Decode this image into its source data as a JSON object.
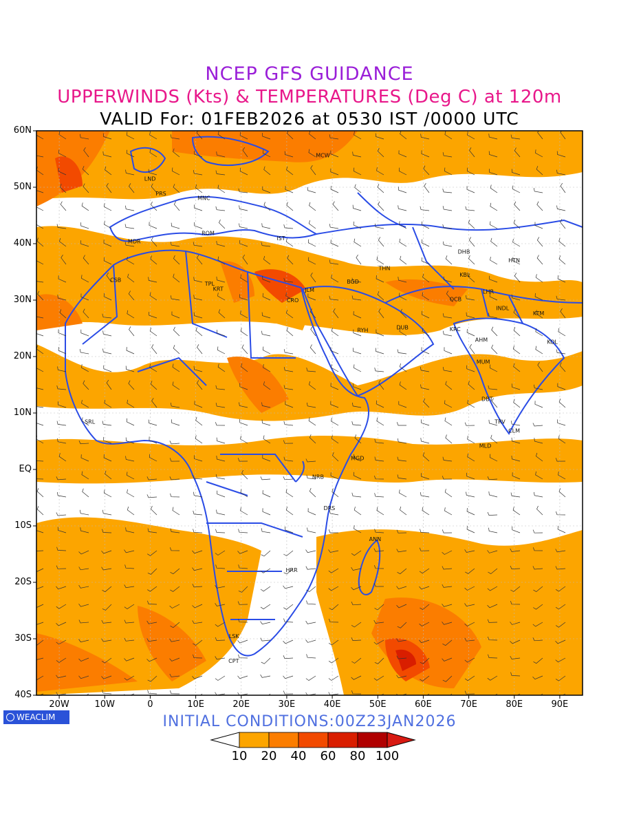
{
  "header": {
    "title": "NCEP GFS GUIDANCE",
    "subtitle": "UPPERWINDS (Kts) & TEMPERATURES (Deg C) at 120m",
    "valid": "VALID For: 01FEB2026 at 0530 IST /0000 UTC"
  },
  "footer": {
    "initial_conditions": "INITIAL  CONDITIONS:00Z23JAN2026",
    "logo": "WEACLIM"
  },
  "map": {
    "region": "Africa / Middle East / South Asia",
    "lat_range": [
      -40,
      60
    ],
    "lon_range": [
      -25,
      95
    ],
    "lat_labels": [
      "60N",
      "50N",
      "40N",
      "30N",
      "20N",
      "10N",
      "EQ",
      "10S",
      "20S",
      "30S",
      "40S"
    ],
    "lon_labels": [
      "20W",
      "10W",
      "0",
      "10E",
      "20E",
      "30E",
      "40E",
      "50E",
      "60E",
      "70E",
      "80E",
      "90E"
    ],
    "stations": [
      {
        "name": "MCW",
        "lat": 55.7,
        "lon": 37.6
      },
      {
        "name": "LND",
        "lat": 51.5,
        "lon": -0.1
      },
      {
        "name": "PRS",
        "lat": 48.9,
        "lon": 2.4
      },
      {
        "name": "MNC",
        "lat": 48.1,
        "lon": 11.6
      },
      {
        "name": "ROM",
        "lat": 41.9,
        "lon": 12.5
      },
      {
        "name": "MDR",
        "lat": 40.4,
        "lon": -3.7
      },
      {
        "name": "IST",
        "lat": 41.0,
        "lon": 29.0
      },
      {
        "name": "THN",
        "lat": 35.7,
        "lon": 51.4
      },
      {
        "name": "BGD",
        "lat": 33.3,
        "lon": 44.4
      },
      {
        "name": "TPL",
        "lat": 32.9,
        "lon": 13.2
      },
      {
        "name": "KRT",
        "lat": 32.0,
        "lon": 15.0
      },
      {
        "name": "CSB",
        "lat": 33.6,
        "lon": -7.6
      },
      {
        "name": "JLM",
        "lat": 31.8,
        "lon": 35.2
      },
      {
        "name": "CRO",
        "lat": 30.0,
        "lon": 31.2
      },
      {
        "name": "RYH",
        "lat": 24.7,
        "lon": 46.7
      },
      {
        "name": "DUB",
        "lat": 25.2,
        "lon": 55.3
      },
      {
        "name": "DHB",
        "lat": 38.6,
        "lon": 68.8
      },
      {
        "name": "KBL",
        "lat": 34.5,
        "lon": 69.2
      },
      {
        "name": "HTN",
        "lat": 37.1,
        "lon": 79.9
      },
      {
        "name": "LHR",
        "lat": 31.5,
        "lon": 74.3
      },
      {
        "name": "QCB",
        "lat": 30.2,
        "lon": 67.0
      },
      {
        "name": "INDL",
        "lat": 28.6,
        "lon": 77.2
      },
      {
        "name": "KTM",
        "lat": 27.7,
        "lon": 85.3
      },
      {
        "name": "KRC",
        "lat": 24.9,
        "lon": 67.0
      },
      {
        "name": "AHM",
        "lat": 23.0,
        "lon": 72.6
      },
      {
        "name": "KOL",
        "lat": 22.6,
        "lon": 88.4
      },
      {
        "name": "MUM",
        "lat": 19.1,
        "lon": 72.9
      },
      {
        "name": "DBT",
        "lat": 12.5,
        "lon": 74.0
      },
      {
        "name": "TRV",
        "lat": 8.5,
        "lon": 76.9
      },
      {
        "name": "CLM",
        "lat": 6.9,
        "lon": 79.9
      },
      {
        "name": "MLD",
        "lat": 4.2,
        "lon": 73.5
      },
      {
        "name": "SRL",
        "lat": 8.5,
        "lon": -13.2
      },
      {
        "name": "MGD",
        "lat": 2.0,
        "lon": 45.3
      },
      {
        "name": "NRB",
        "lat": -1.3,
        "lon": 36.8
      },
      {
        "name": "DRS",
        "lat": -6.8,
        "lon": 39.3
      },
      {
        "name": "ANN",
        "lat": -12.3,
        "lon": 49.3
      },
      {
        "name": "HRR",
        "lat": -17.8,
        "lon": 31.0
      },
      {
        "name": "LSK",
        "lat": -29.5,
        "lon": 18.5
      },
      {
        "name": "CPT",
        "lat": -33.9,
        "lon": 18.4
      }
    ]
  },
  "colorbar": {
    "labels": [
      "10",
      "20",
      "40",
      "60",
      "80",
      "100"
    ],
    "colors": [
      "#ffffff",
      "#fca500",
      "#fb7d00",
      "#f24a00",
      "#d91e00",
      "#b00000",
      "#d81a12"
    ]
  }
}
